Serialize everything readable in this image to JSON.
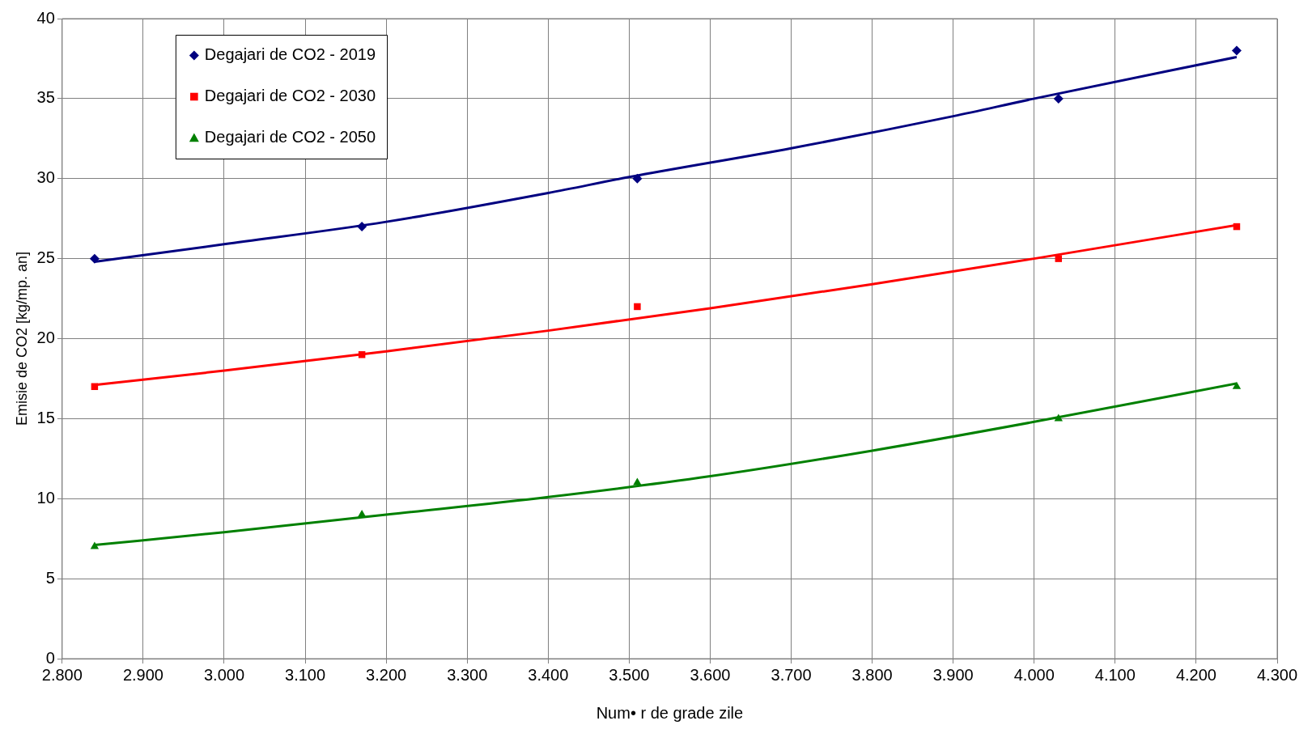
{
  "chart_data": {
    "type": "scatter",
    "xlabel": "Num• r de grade zile",
    "ylabel": "Emisie de CO2 [kg/mp. an]",
    "x": [
      2840,
      3170,
      3510,
      4030,
      4250
    ],
    "series": [
      {
        "name": "Degajari de CO2 - 2019",
        "color": "#000080",
        "marker": "diamond",
        "values": [
          25,
          27,
          30,
          35,
          38
        ]
      },
      {
        "name": "Degajari de CO2 - 2030",
        "color": "#ff0000",
        "marker": "square",
        "values": [
          17,
          19,
          22,
          25,
          27
        ]
      },
      {
        "name": "Degajari de CO2 - 2050",
        "color": "#008000",
        "marker": "triangle",
        "values": [
          7,
          9,
          11,
          15,
          17
        ]
      },
      {
        "type": "line",
        "color": "#000080",
        "marker": "none",
        "line_style": "solid",
        "x": [
          2840,
          3000,
          3200,
          3400,
          3500,
          3700,
          3900,
          4000,
          4250
        ],
        "values": [
          24.8,
          25.9,
          27.3,
          29.1,
          30.1,
          31.9,
          33.9,
          35.0,
          37.6
        ]
      },
      {
        "type": "line",
        "color": "#ff0000",
        "marker": "none",
        "line_style": "solid",
        "x": [
          2840,
          3000,
          3200,
          3400,
          3600,
          3800,
          4000,
          4250
        ],
        "values": [
          17.1,
          18.0,
          19.2,
          20.5,
          21.9,
          23.4,
          25.0,
          27.1
        ]
      },
      {
        "type": "line",
        "color": "#008000",
        "marker": "none",
        "line_style": "solid",
        "x": [
          2840,
          3000,
          3200,
          3400,
          3600,
          3800,
          4000,
          4250
        ],
        "values": [
          7.1,
          7.9,
          9.0,
          10.1,
          11.4,
          13.0,
          14.8,
          17.2
        ]
      }
    ],
    "xlim": [
      2800,
      4300
    ],
    "xticks": [
      {
        "value": 2800,
        "label": "2.800"
      },
      {
        "value": 2900,
        "label": "2.900"
      },
      {
        "value": 3000,
        "label": "3.000"
      },
      {
        "value": 3100,
        "label": "3.100"
      },
      {
        "value": 3200,
        "label": "3.200"
      },
      {
        "value": 3300,
        "label": "3.300"
      },
      {
        "value": 3400,
        "label": "3.400"
      },
      {
        "value": 3500,
        "label": "3.500"
      },
      {
        "value": 3600,
        "label": "3.600"
      },
      {
        "value": 3700,
        "label": "3.700"
      },
      {
        "value": 3800,
        "label": "3.800"
      },
      {
        "value": 3900,
        "label": "3.900"
      },
      {
        "value": 4000,
        "label": "4.000"
      },
      {
        "value": 4100,
        "label": "4.100"
      },
      {
        "value": 4200,
        "label": "4.200"
      },
      {
        "value": 4300,
        "label": "4.300"
      }
    ],
    "ylim": [
      0,
      40
    ],
    "yticks": [
      0,
      5,
      10,
      15,
      20,
      25,
      30,
      35,
      40
    ],
    "grid": true,
    "legend": "top left"
  }
}
